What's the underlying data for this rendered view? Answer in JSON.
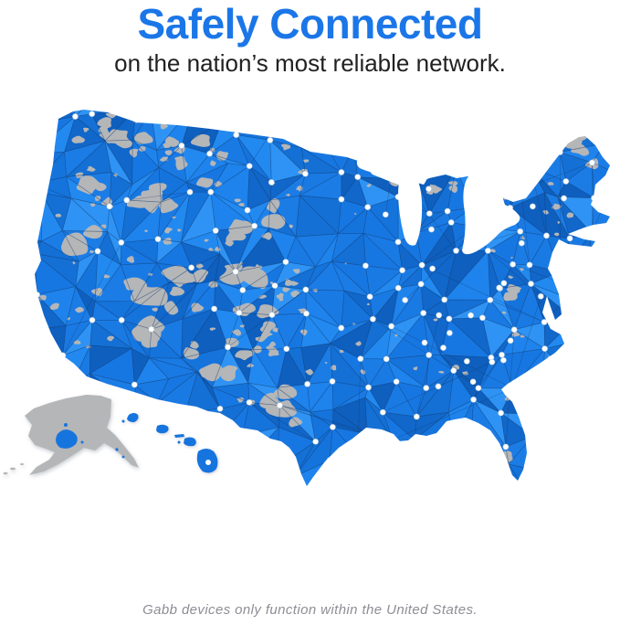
{
  "header": {
    "title": "Safely Connected",
    "subtitle": "on the nation’s most reliable network."
  },
  "map": {
    "description": "Map of the United States showing nationwide network coverage with connected node mesh",
    "covered_region": "United States",
    "node_icon": "network-node-dot"
  },
  "footer": {
    "disclaimer": "Gabb devices only function within the United States."
  },
  "colors": {
    "background": "#FFFFFF",
    "brand_blue": "#1B76E8",
    "subtitle_text": "#212121",
    "footer_text": "#8D8D95",
    "map_covered": "#1674DE",
    "map_no_coverage": "#B5B6B8",
    "map_mesh_line": "#123C6E",
    "map_node": "#FFFFFF",
    "map_lake": "#FFFFFF",
    "map_facet_palette": [
      "#0E5FBE",
      "#1167CA",
      "#1470D5",
      "#1573DC",
      "#1777E2",
      "#1A7AE4",
      "#1B7CE6",
      "#1E83EC",
      "#2289F0",
      "#2E93F4"
    ]
  }
}
